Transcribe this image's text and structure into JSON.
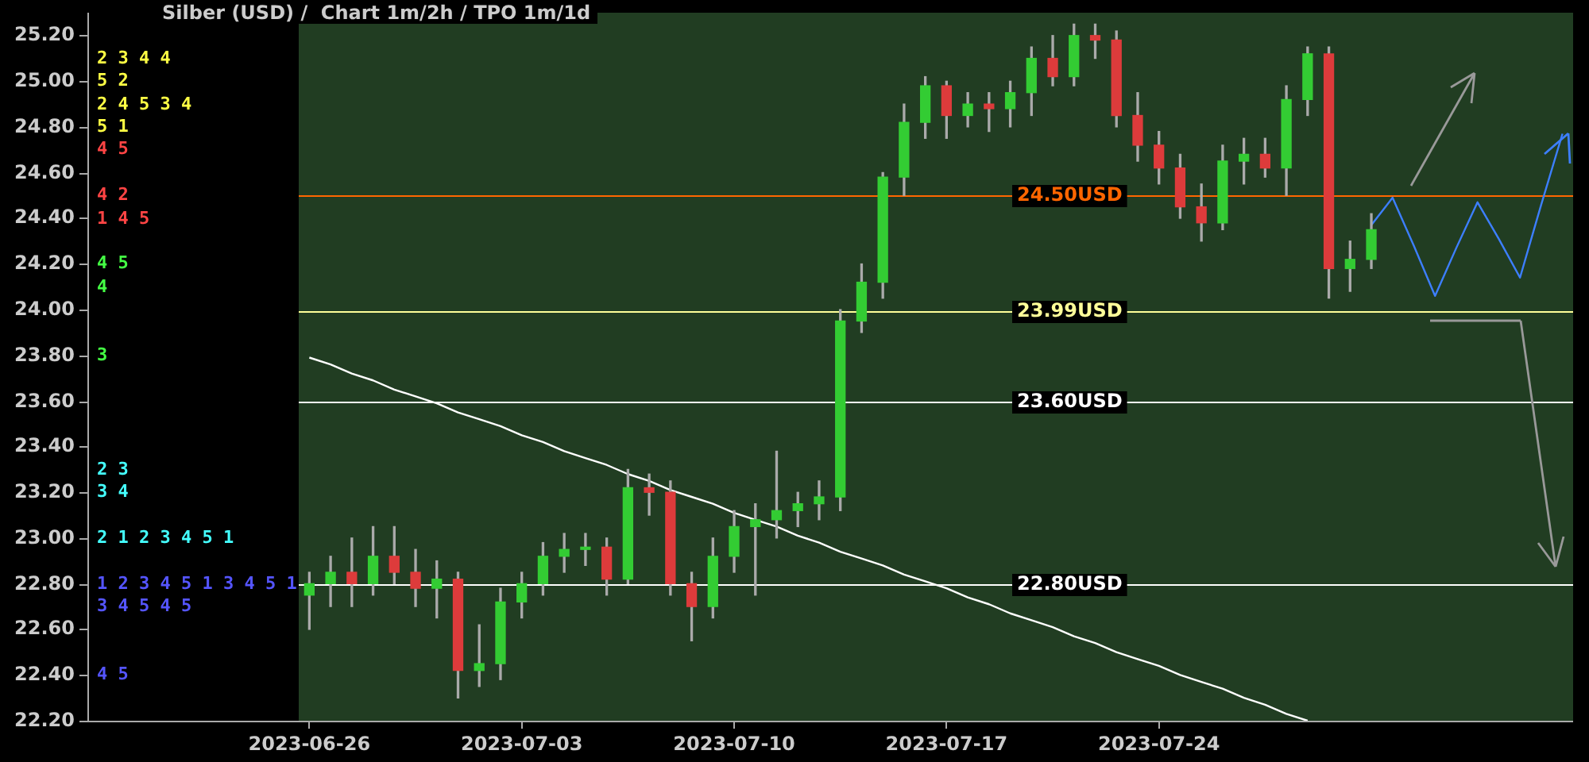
{
  "chart_data": [
    {
      "type": "candlestick",
      "title": "Silber (USD) /  Chart 1m/2h / TPO 1m/1d",
      "categories": [
        "2023-06-26",
        null,
        null,
        null,
        null,
        null,
        null,
        null,
        null,
        null,
        "2023-07-03",
        null,
        null,
        null,
        null,
        null,
        null,
        null,
        null,
        null,
        "2023-07-10",
        null,
        null,
        null,
        null,
        null,
        null,
        null,
        null,
        null,
        "2023-07-17",
        null,
        null,
        null,
        null,
        null,
        null,
        null,
        null,
        null,
        "2023-07-24",
        null,
        null,
        null,
        null,
        null,
        null,
        null,
        null,
        null,
        null,
        null,
        null,
        null,
        null,
        null,
        null,
        null,
        null,
        null
      ],
      "ohlc": [
        [
          22.75,
          22.85,
          22.6,
          22.8
        ],
        [
          22.8,
          22.92,
          22.7,
          22.85
        ],
        [
          22.85,
          23.0,
          22.7,
          22.8
        ],
        [
          22.8,
          23.05,
          22.75,
          22.92
        ],
        [
          22.92,
          23.05,
          22.8,
          22.85
        ],
        [
          22.85,
          22.95,
          22.7,
          22.78
        ],
        [
          22.78,
          22.9,
          22.65,
          22.82
        ],
        [
          22.82,
          22.85,
          22.3,
          22.42
        ],
        [
          22.42,
          22.62,
          22.35,
          22.45
        ],
        [
          22.45,
          22.78,
          22.38,
          22.72
        ],
        [
          22.72,
          22.85,
          22.65,
          22.8
        ],
        [
          22.8,
          22.98,
          22.75,
          22.92
        ],
        [
          22.92,
          23.02,
          22.85,
          22.95
        ],
        [
          22.95,
          23.02,
          22.88,
          22.96
        ],
        [
          22.96,
          23.0,
          22.75,
          22.82
        ],
        [
          22.82,
          23.3,
          22.8,
          23.22
        ],
        [
          23.22,
          23.28,
          23.1,
          23.2
        ],
        [
          23.2,
          23.25,
          22.75,
          22.8
        ],
        [
          22.8,
          22.85,
          22.55,
          22.7
        ],
        [
          22.7,
          23.0,
          22.65,
          22.92
        ],
        [
          22.92,
          23.12,
          22.85,
          23.05
        ],
        [
          23.05,
          23.15,
          22.75,
          23.08
        ],
        [
          23.08,
          23.38,
          23.0,
          23.12
        ],
        [
          23.12,
          23.2,
          23.05,
          23.15
        ],
        [
          23.15,
          23.25,
          23.08,
          23.18
        ],
        [
          23.18,
          24.0,
          23.12,
          23.95
        ],
        [
          23.95,
          24.2,
          23.9,
          24.12
        ],
        [
          24.12,
          24.6,
          24.05,
          24.58
        ],
        [
          24.58,
          24.9,
          24.5,
          24.82
        ],
        [
          24.82,
          25.02,
          24.75,
          24.98
        ],
        [
          24.98,
          25.0,
          24.75,
          24.85
        ],
        [
          24.85,
          24.95,
          24.8,
          24.9
        ],
        [
          24.9,
          24.95,
          24.78,
          24.88
        ],
        [
          24.88,
          25.0,
          24.8,
          24.95
        ],
        [
          24.95,
          25.15,
          24.85,
          25.1
        ],
        [
          25.1,
          25.2,
          24.98,
          25.02
        ],
        [
          25.02,
          25.25,
          24.98,
          25.2
        ],
        [
          25.2,
          25.25,
          25.1,
          25.18
        ],
        [
          25.18,
          25.22,
          24.8,
          24.85
        ],
        [
          24.85,
          24.95,
          24.65,
          24.72
        ],
        [
          24.72,
          24.78,
          24.55,
          24.62
        ],
        [
          24.62,
          24.68,
          24.4,
          24.45
        ],
        [
          24.45,
          24.55,
          24.3,
          24.38
        ],
        [
          24.38,
          24.72,
          24.35,
          24.65
        ],
        [
          24.65,
          24.75,
          24.55,
          24.68
        ],
        [
          24.68,
          24.75,
          24.58,
          24.62
        ],
        [
          24.62,
          24.98,
          24.5,
          24.92
        ],
        [
          24.92,
          25.15,
          24.85,
          25.12
        ],
        [
          25.12,
          25.15,
          24.05,
          24.18
        ],
        [
          24.18,
          24.3,
          24.08,
          24.22
        ],
        [
          24.22,
          24.42,
          24.18,
          24.35
        ],
        null,
        null,
        null,
        null,
        null,
        null,
        null,
        null,
        null
      ],
      "series": [
        {
          "type": "line",
          "color": "#ffffff",
          "values": [
            23.79,
            23.76,
            23.72,
            23.69,
            23.65,
            23.62,
            23.59,
            23.55,
            23.52,
            23.49,
            23.45,
            23.42,
            23.38,
            23.35,
            23.32,
            23.28,
            23.25,
            23.21,
            23.18,
            23.15,
            23.11,
            23.08,
            23.05,
            23.01,
            22.98,
            22.94,
            22.91,
            22.88,
            22.84,
            22.81,
            22.78,
            22.74,
            22.71,
            22.67,
            22.64,
            22.61,
            22.57,
            22.54,
            22.5,
            22.47,
            22.44,
            22.4,
            22.37,
            22.34,
            22.3,
            22.27,
            22.23,
            22.2,
            null,
            null,
            null,
            null,
            null,
            null,
            null,
            null,
            null,
            null,
            null,
            null
          ]
        },
        {
          "type": "line",
          "color": "#3d7fff",
          "values": [
            null,
            null,
            null,
            null,
            null,
            null,
            null,
            null,
            null,
            null,
            null,
            null,
            null,
            null,
            null,
            null,
            null,
            null,
            null,
            null,
            null,
            null,
            null,
            null,
            null,
            null,
            null,
            null,
            null,
            null,
            null,
            null,
            null,
            null,
            null,
            null,
            null,
            null,
            null,
            null,
            null,
            null,
            null,
            null,
            null,
            null,
            null,
            null,
            null,
            null,
            24.37,
            24.49,
            24.28,
            24.06,
            24.27,
            24.47,
            24.31,
            24.14,
            24.46,
            24.77
          ]
        }
      ],
      "ref_lines": [
        {
          "axis": "y",
          "value": 24.5,
          "label": "24.50USD",
          "color": "#ff6600"
        },
        {
          "axis": "y",
          "value": 23.99,
          "label": "23.99USD",
          "color": "#ffff99"
        },
        {
          "axis": "y",
          "value": 23.6,
          "label": "23.60USD",
          "color": "#ffffff"
        },
        {
          "axis": "y",
          "value": 22.8,
          "label": "22.80USD",
          "color": "#ffffff"
        }
      ],
      "ylim": [
        22.2,
        25.3
      ],
      "yticks": [
        {
          "value": 22.2,
          "label": "22.20"
        },
        {
          "value": 22.4,
          "label": "22.40"
        },
        {
          "value": 22.6,
          "label": "22.60"
        },
        {
          "value": 22.8,
          "label": "22.80"
        },
        {
          "value": 23.0,
          "label": "23.00"
        },
        {
          "value": 23.2,
          "label": "23.20"
        },
        {
          "value": 23.4,
          "label": "23.40"
        },
        {
          "value": 23.6,
          "label": "23.60"
        },
        {
          "value": 23.8,
          "label": "23.80"
        },
        {
          "value": 24.0,
          "label": "24.00"
        },
        {
          "value": 24.2,
          "label": "24.20"
        },
        {
          "value": 24.4,
          "label": "24.40"
        },
        {
          "value": 24.6,
          "label": "24.60"
        },
        {
          "value": 24.8,
          "label": "24.80"
        },
        {
          "value": 25.0,
          "label": "25.00"
        },
        {
          "value": 25.2,
          "label": "25.20"
        }
      ]
    },
    {
      "type": "other",
      "annotations": [
        "2 3 4 4",
        "5 2",
        "2 4 5 3 4",
        "5 1",
        "4 5",
        "4 2",
        "1 4 5",
        "4 5",
        "4",
        "3",
        "2 3",
        "3 4",
        "2 1 2 3 4 5 1",
        "1 2 3 4 5 1 3 4 5 1",
        "3 4 5 4 5",
        "4 5"
      ]
    }
  ]
}
